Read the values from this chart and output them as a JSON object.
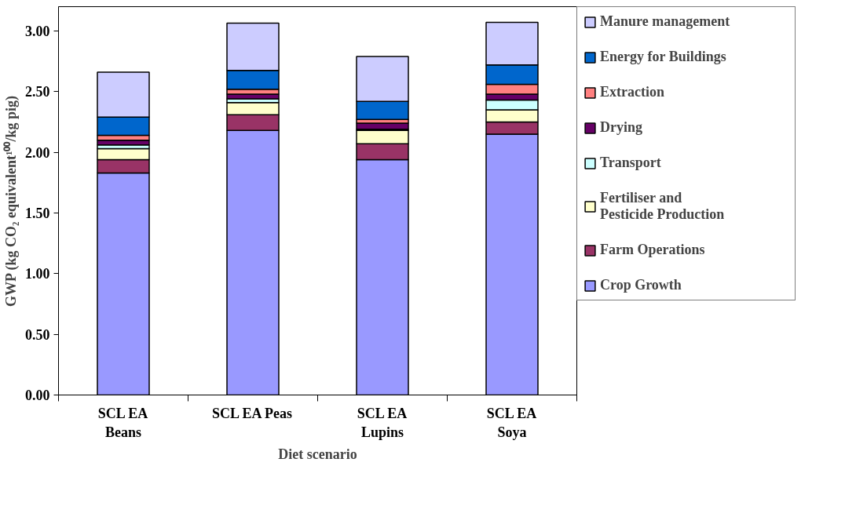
{
  "chart_data": {
    "type": "bar",
    "stacked": true,
    "xlabel": "Diet scenario",
    "ylabel": "GWP (kg CO₂ equivalent¹⁰⁰/kg pig)",
    "categories": [
      "SCL EA\nBeans",
      "SCL EA Peas",
      "SCL EA\nLupins",
      "SCL EA\nSoya"
    ],
    "series": [
      {
        "name": "Crop Growth",
        "color": "#9999ff",
        "values": [
          1.83,
          2.18,
          1.94,
          2.15
        ]
      },
      {
        "name": "Farm Operations",
        "color": "#993366",
        "values": [
          0.11,
          0.13,
          0.13,
          0.1
        ]
      },
      {
        "name": "Fertiliser and\nPesticide Production",
        "color": "#ffffcc",
        "values": [
          0.09,
          0.1,
          0.11,
          0.1
        ]
      },
      {
        "name": "Transport",
        "color": "#ccffff",
        "values": [
          0.03,
          0.03,
          0.01,
          0.08
        ]
      },
      {
        "name": "Drying",
        "color": "#660066",
        "values": [
          0.04,
          0.04,
          0.05,
          0.05
        ]
      },
      {
        "name": "Extraction",
        "color": "#ff8080",
        "values": [
          0.04,
          0.04,
          0.03,
          0.08
        ]
      },
      {
        "name": "Energy for Buildings",
        "color": "#0066cc",
        "values": [
          0.15,
          0.155,
          0.15,
          0.16
        ]
      },
      {
        "name": "Manure management",
        "color": "#ccccff",
        "values": [
          0.37,
          0.39,
          0.37,
          0.35
        ]
      }
    ],
    "ylim": [
      0,
      3.2
    ],
    "yticks": [
      {
        "value": 0,
        "label": "0.00"
      },
      {
        "value": 0.5,
        "label": "0.50"
      },
      {
        "value": 1,
        "label": "1.00"
      },
      {
        "value": 1.5,
        "label": "1.50"
      },
      {
        "value": 2,
        "label": "2.00"
      },
      {
        "value": 2.5,
        "label": "2.50"
      },
      {
        "value": 3,
        "label": "3.00"
      }
    ],
    "grid": false,
    "legend": "right"
  }
}
